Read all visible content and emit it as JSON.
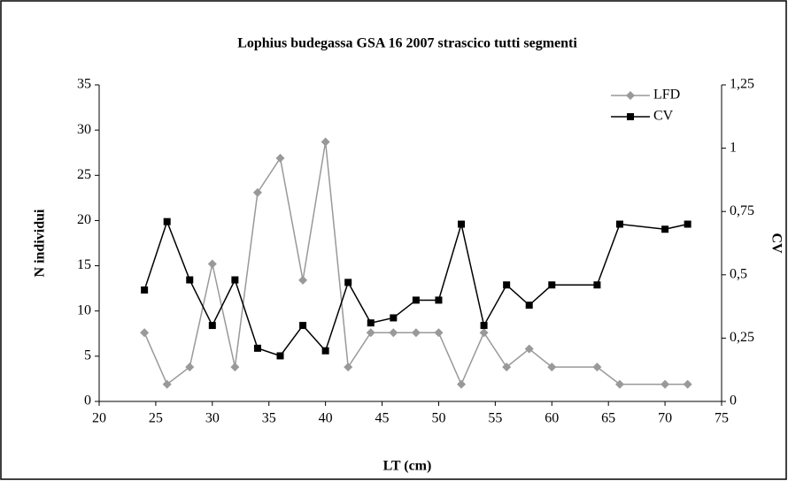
{
  "chart_data": {
    "type": "line",
    "title": "Lophius budegassa GSA 16 2007 strascico tutti segmenti",
    "x_label": "LT (cm)",
    "y_label": "N individui",
    "y2_label": "CV",
    "x": [
      24,
      26,
      28,
      30,
      32,
      34,
      36,
      38,
      40,
      42,
      44,
      46,
      48,
      50,
      52,
      54,
      56,
      58,
      60,
      64,
      66,
      70,
      72
    ],
    "series": [
      {
        "name": "LFD",
        "color": "#999999",
        "marker": "diamond",
        "values": [
          7.6,
          1.9,
          3.8,
          15.2,
          3.8,
          23.1,
          26.9,
          13.4,
          28.7,
          3.8,
          7.6,
          7.6,
          7.6,
          7.6,
          1.9,
          7.6,
          3.8,
          5.8,
          3.8,
          3.8,
          1.9,
          1.9,
          1.9
        ]
      },
      {
        "name": "CV",
        "color": "#000000",
        "marker": "square",
        "axis": "y2",
        "values": [
          0.44,
          0.71,
          0.48,
          0.3,
          0.48,
          0.21,
          0.18,
          0.3,
          0.2,
          0.47,
          0.31,
          0.33,
          0.4,
          0.4,
          0.7,
          0.3,
          0.46,
          0.38,
          0.46,
          0.46,
          0.7,
          0.68,
          0.7
        ]
      }
    ],
    "xlim": [
      20,
      75
    ],
    "xticks": [
      20,
      25,
      30,
      35,
      40,
      45,
      50,
      55,
      60,
      65,
      70,
      75
    ],
    "ylim": [
      0,
      35
    ],
    "yticks": [
      0,
      5,
      10,
      15,
      20,
      25,
      30,
      35
    ],
    "y2lim": [
      0,
      1.25
    ],
    "y2ticks": [
      0,
      {
        "value": 0.25,
        "label": "0,25"
      },
      {
        "value": 0.5,
        "label": "0,5"
      },
      {
        "value": 0.75,
        "label": "0,75"
      },
      1,
      {
        "value": 1.25,
        "label": "1,25"
      }
    ],
    "grid": false,
    "legend": "top-right"
  }
}
